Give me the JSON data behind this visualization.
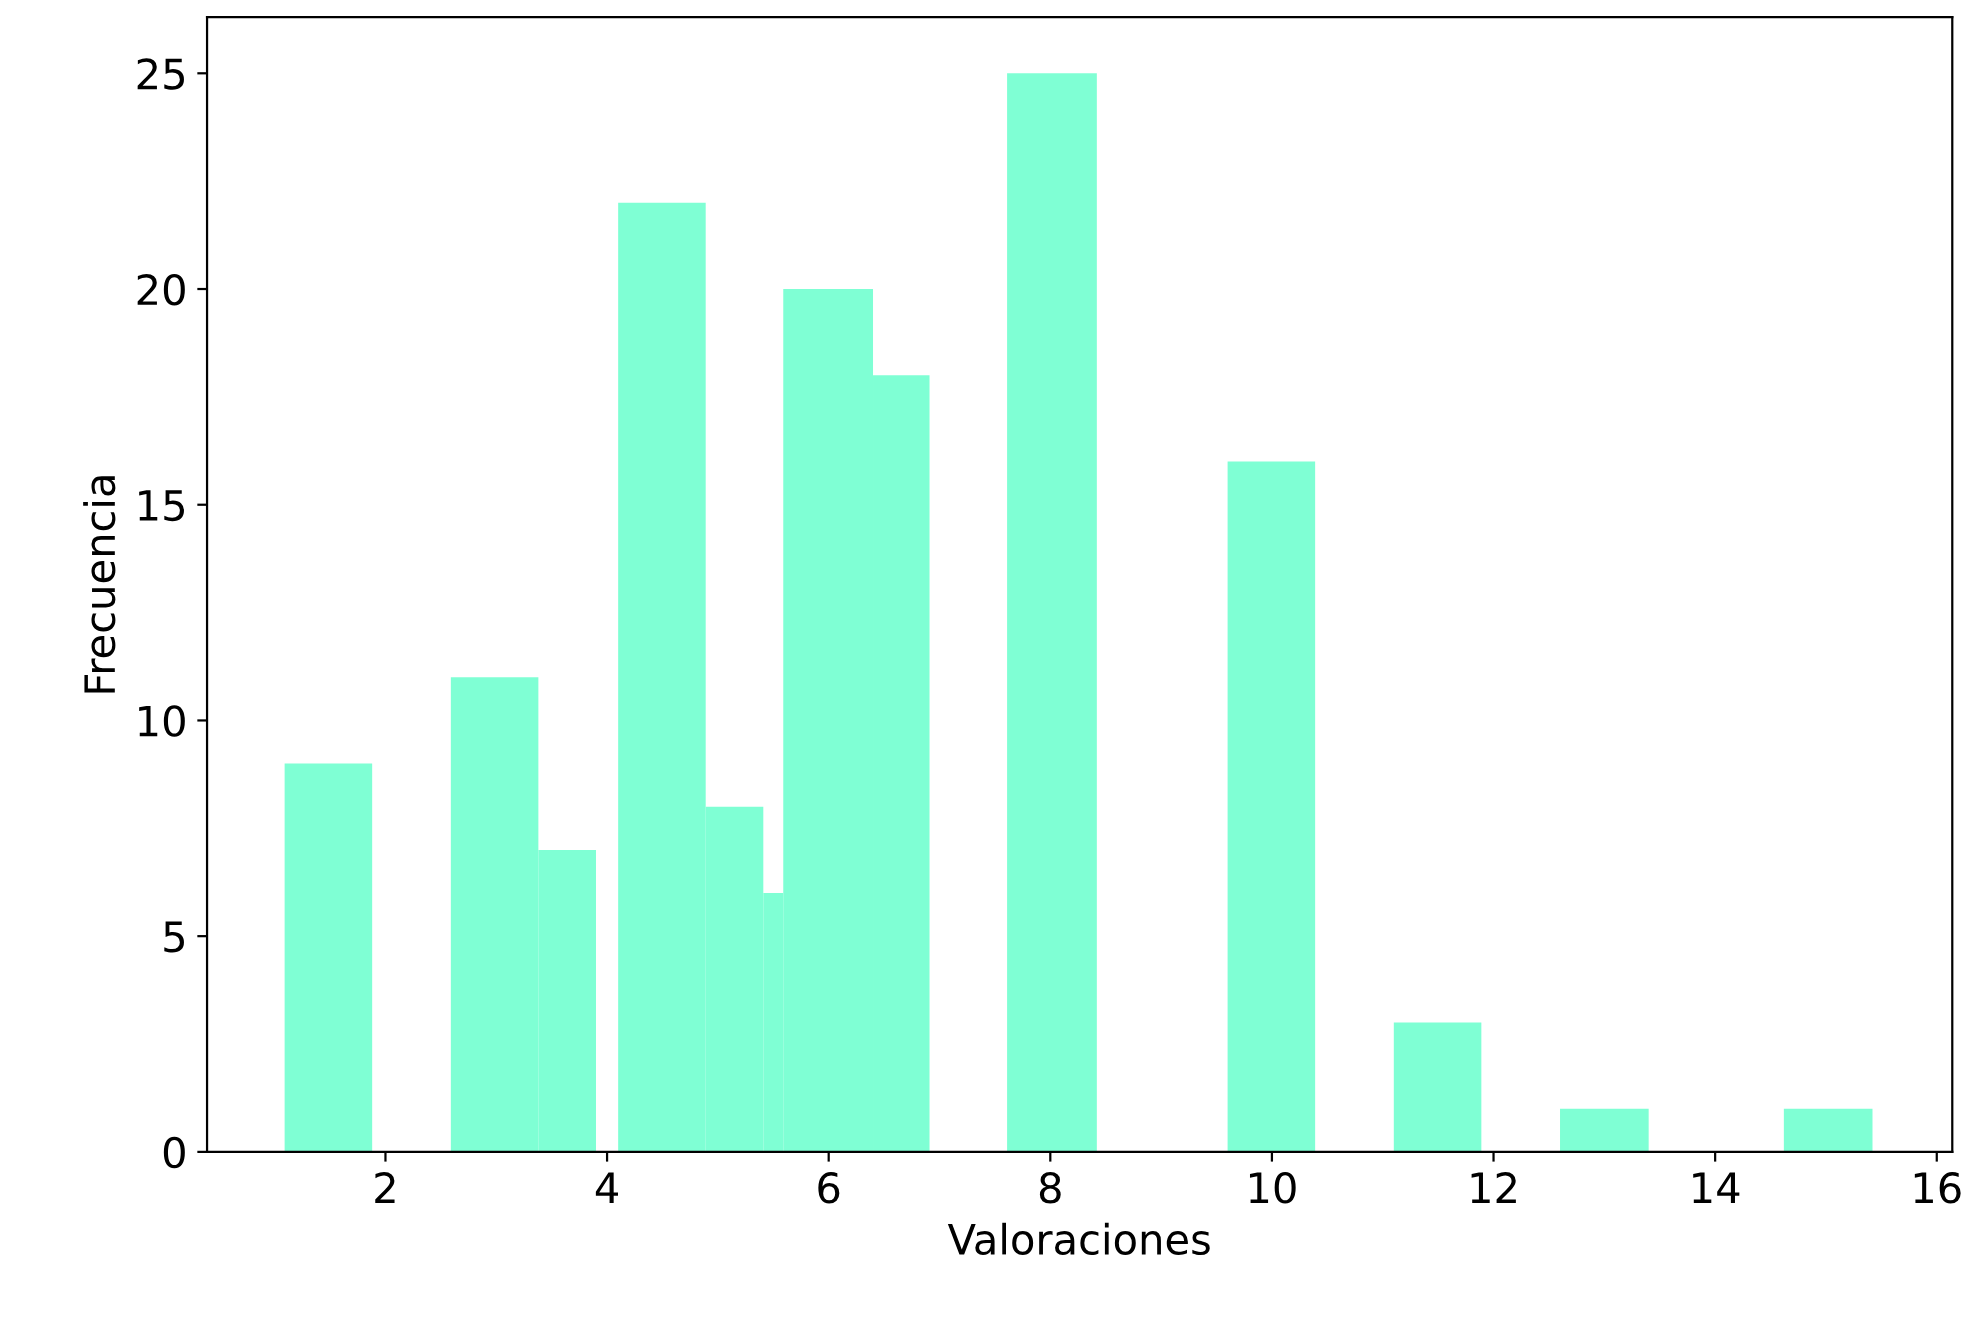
{
  "chart_data": {
    "type": "histogram",
    "xlabel": "Valoraciones",
    "ylabel": "Frecuencia",
    "bins": [
      1.09,
      1.88,
      2.59,
      3.38,
      3.9,
      4.1,
      4.89,
      5.41,
      5.59,
      6.4,
      6.91,
      7.61,
      8.42,
      9.6,
      10.39,
      11.1,
      11.89,
      12.6,
      13.4,
      14.62,
      15.42
    ],
    "values": [
      9,
      0,
      11,
      7,
      0,
      22,
      8,
      6,
      20,
      18,
      0,
      25,
      0,
      16,
      0,
      3,
      0,
      1,
      0,
      1
    ],
    "color": "#7fffd4",
    "xlim": [
      0.39,
      16.14
    ],
    "ylim": [
      0,
      26.3
    ],
    "xticks": [
      2,
      4,
      6,
      8,
      10,
      12,
      14,
      16
    ],
    "yticks": [
      0,
      5,
      10,
      15,
      20,
      25
    ],
    "grid": false
  }
}
